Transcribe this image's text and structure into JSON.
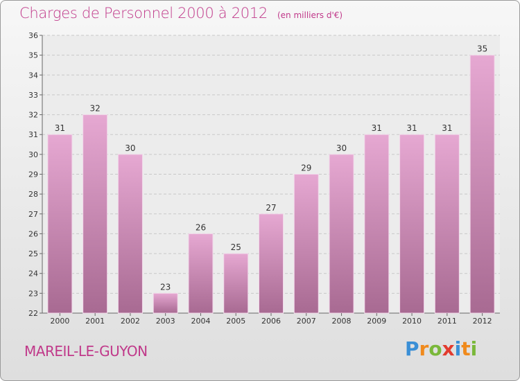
{
  "title": "Charges de Personnel 2000 à 2012",
  "subtitle": "(en milliers d'€)",
  "commune": "MAREIL-LE-GUYON",
  "logo": {
    "text": "Proxiti",
    "letters": [
      {
        "ch": "P",
        "color": "#3a8fd6"
      },
      {
        "ch": "r",
        "color": "#f08a1c"
      },
      {
        "ch": "o",
        "color": "#7ab83a"
      },
      {
        "ch": "x",
        "color": "#e23b2e"
      },
      {
        "ch": "i",
        "color": "#3a8fd6"
      },
      {
        "ch": "t",
        "color": "#f08a1c"
      },
      {
        "ch": "i",
        "color": "#7ab83a"
      }
    ]
  },
  "colors": {
    "title": "#c0398a",
    "bar_top": "#e6a8d2",
    "bar_bottom": "#a86a92",
    "grid": "#c8c8c8"
  },
  "chart_data": {
    "type": "bar",
    "categories": [
      "2000",
      "2001",
      "2002",
      "2003",
      "2004",
      "2005",
      "2006",
      "2007",
      "2008",
      "2009",
      "2010",
      "2011",
      "2012"
    ],
    "values": [
      31,
      32,
      30,
      23,
      26,
      25,
      27,
      29,
      30,
      31,
      31,
      31,
      35
    ],
    "ylim": [
      22,
      36
    ],
    "yticks": [
      22,
      23,
      24,
      25,
      26,
      27,
      28,
      29,
      30,
      31,
      32,
      33,
      34,
      35,
      36
    ],
    "grid": true,
    "data_labels": true
  }
}
